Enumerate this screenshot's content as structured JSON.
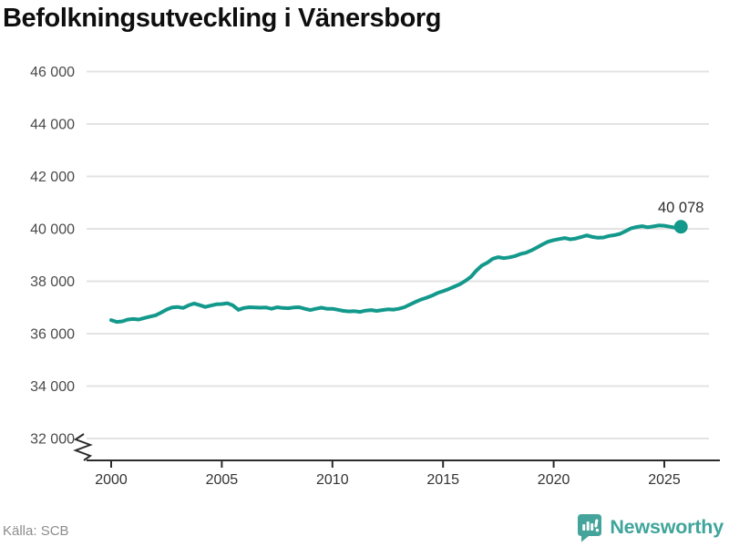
{
  "page": {
    "title": "Befolkningsutveckling i Vänersborg"
  },
  "footer": {
    "source": "Källa: SCB",
    "brand": "Newsworthy"
  },
  "colors": {
    "line": "#13998c",
    "grid": "#e3e3e3",
    "axis": "#2b2b2b",
    "brand": "#3fa59b",
    "title": "#0e0e0e",
    "tick_text": "#4a4a4a",
    "source_text": "#8c8c8c"
  },
  "chart_data": {
    "type": "line",
    "title": "Befolkningsutveckling i Vänersborg",
    "source": "Källa: SCB",
    "xlabel": "",
    "ylabel": "",
    "grid": "horizontal",
    "legend": "none",
    "axis_break_bottom_left": true,
    "xlim": [
      1998.9,
      2027.6
    ],
    "ylim": [
      31600,
      46600
    ],
    "yticks": [
      {
        "v": 46000,
        "label": "46 000"
      },
      {
        "v": 44000,
        "label": "44 000"
      },
      {
        "v": 42000,
        "label": "42 000"
      },
      {
        "v": 40000,
        "label": "40 000"
      },
      {
        "v": 38000,
        "label": "38 000"
      },
      {
        "v": 36000,
        "label": "36 000"
      },
      {
        "v": 34000,
        "label": "34 000"
      },
      {
        "v": 32000,
        "label": "32 000"
      }
    ],
    "xticks": [
      {
        "v": 2000,
        "label": "2000"
      },
      {
        "v": 2005,
        "label": "2005"
      },
      {
        "v": 2010,
        "label": "2010"
      },
      {
        "v": 2015,
        "label": "2015"
      },
      {
        "v": 2020,
        "label": "2020"
      },
      {
        "v": 2025,
        "label": "2025"
      }
    ],
    "latest": {
      "x": 2025.75,
      "value": 40078,
      "label": "40 078"
    },
    "series": [
      {
        "name": "Befolkning Vänersborg",
        "color": "#13998c",
        "points": [
          [
            2000.0,
            36520
          ],
          [
            2000.25,
            36450
          ],
          [
            2000.5,
            36470
          ],
          [
            2000.75,
            36540
          ],
          [
            2001.0,
            36560
          ],
          [
            2001.25,
            36540
          ],
          [
            2001.5,
            36600
          ],
          [
            2001.75,
            36650
          ],
          [
            2002.0,
            36700
          ],
          [
            2002.25,
            36800
          ],
          [
            2002.5,
            36920
          ],
          [
            2002.75,
            37000
          ],
          [
            2003.0,
            37020
          ],
          [
            2003.25,
            36980
          ],
          [
            2003.5,
            37080
          ],
          [
            2003.75,
            37150
          ],
          [
            2004.0,
            37090
          ],
          [
            2004.25,
            37020
          ],
          [
            2004.5,
            37070
          ],
          [
            2004.75,
            37120
          ],
          [
            2005.0,
            37130
          ],
          [
            2005.25,
            37160
          ],
          [
            2005.5,
            37080
          ],
          [
            2005.75,
            36910
          ],
          [
            2006.0,
            36980
          ],
          [
            2006.25,
            37010
          ],
          [
            2006.5,
            37000
          ],
          [
            2006.75,
            36990
          ],
          [
            2007.0,
            37000
          ],
          [
            2007.25,
            36950
          ],
          [
            2007.5,
            37010
          ],
          [
            2007.75,
            36980
          ],
          [
            2008.0,
            36970
          ],
          [
            2008.25,
            37000
          ],
          [
            2008.5,
            37010
          ],
          [
            2008.75,
            36950
          ],
          [
            2009.0,
            36900
          ],
          [
            2009.25,
            36950
          ],
          [
            2009.5,
            36990
          ],
          [
            2009.75,
            36950
          ],
          [
            2010.0,
            36950
          ],
          [
            2010.25,
            36910
          ],
          [
            2010.5,
            36870
          ],
          [
            2010.75,
            36850
          ],
          [
            2011.0,
            36860
          ],
          [
            2011.25,
            36830
          ],
          [
            2011.5,
            36880
          ],
          [
            2011.75,
            36900
          ],
          [
            2012.0,
            36870
          ],
          [
            2012.25,
            36900
          ],
          [
            2012.5,
            36930
          ],
          [
            2012.75,
            36920
          ],
          [
            2013.0,
            36950
          ],
          [
            2013.25,
            37010
          ],
          [
            2013.5,
            37110
          ],
          [
            2013.75,
            37210
          ],
          [
            2014.0,
            37300
          ],
          [
            2014.25,
            37370
          ],
          [
            2014.5,
            37450
          ],
          [
            2014.75,
            37550
          ],
          [
            2015.0,
            37620
          ],
          [
            2015.25,
            37700
          ],
          [
            2015.5,
            37790
          ],
          [
            2015.75,
            37880
          ],
          [
            2016.0,
            38010
          ],
          [
            2016.25,
            38160
          ],
          [
            2016.5,
            38400
          ],
          [
            2016.75,
            38600
          ],
          [
            2017.0,
            38710
          ],
          [
            2017.25,
            38860
          ],
          [
            2017.5,
            38920
          ],
          [
            2017.75,
            38880
          ],
          [
            2018.0,
            38910
          ],
          [
            2018.25,
            38960
          ],
          [
            2018.5,
            39040
          ],
          [
            2018.75,
            39090
          ],
          [
            2019.0,
            39180
          ],
          [
            2019.25,
            39290
          ],
          [
            2019.5,
            39410
          ],
          [
            2019.75,
            39510
          ],
          [
            2020.0,
            39570
          ],
          [
            2020.25,
            39610
          ],
          [
            2020.5,
            39650
          ],
          [
            2020.75,
            39600
          ],
          [
            2021.0,
            39630
          ],
          [
            2021.25,
            39690
          ],
          [
            2021.5,
            39750
          ],
          [
            2021.75,
            39690
          ],
          [
            2022.0,
            39660
          ],
          [
            2022.25,
            39670
          ],
          [
            2022.5,
            39730
          ],
          [
            2022.75,
            39760
          ],
          [
            2023.0,
            39810
          ],
          [
            2023.25,
            39910
          ],
          [
            2023.5,
            40020
          ],
          [
            2023.75,
            40070
          ],
          [
            2024.0,
            40100
          ],
          [
            2024.25,
            40060
          ],
          [
            2024.5,
            40090
          ],
          [
            2024.75,
            40130
          ],
          [
            2025.0,
            40120
          ],
          [
            2025.25,
            40080
          ],
          [
            2025.5,
            40040
          ],
          [
            2025.75,
            40078
          ]
        ]
      }
    ]
  }
}
